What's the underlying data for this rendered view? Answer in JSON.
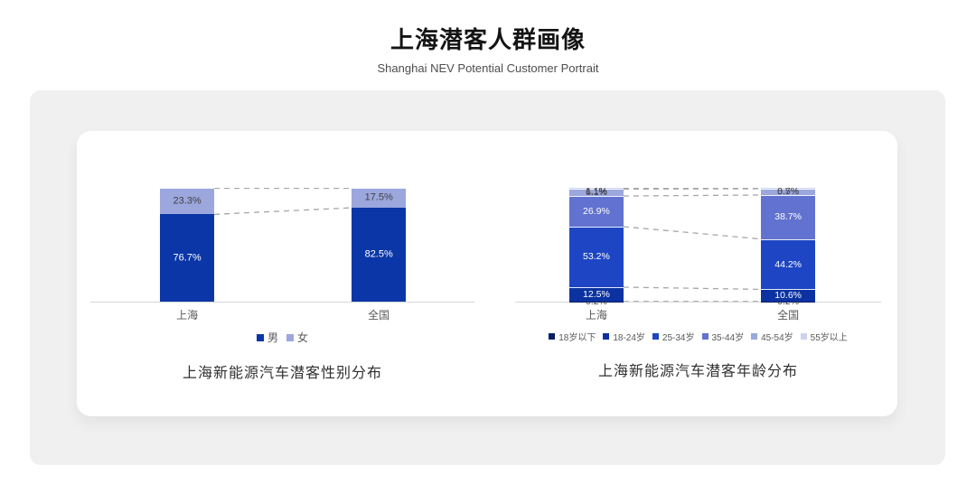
{
  "header": {
    "title": "上海潜客人群画像",
    "subtitle": "Shanghai NEV Potential Customer Portrait"
  },
  "colors": {
    "panel_background": "#f0f0f0",
    "card_background": "#ffffff",
    "axis_line": "#d6d6d6",
    "connector_dash": "#a6a6a6",
    "category_label": "#595959"
  },
  "chart_data": [
    {
      "type": "bar",
      "stacked": true,
      "categories": [
        "上海",
        "全国"
      ],
      "series": [
        {
          "name": "男",
          "color": "#0b36a7",
          "label_color": "#ffffff",
          "values": [
            76.7,
            82.5
          ]
        },
        {
          "name": "女",
          "color": "#9ba7dd",
          "label_color": "#404040",
          "values": [
            23.3,
            17.5
          ]
        }
      ],
      "value_suffix": "%",
      "ylim": [
        0,
        100
      ],
      "grid": false,
      "legend_position": "bottom",
      "connectors": "dashed",
      "caption": "上海新能源汽车潜客性别分布"
    },
    {
      "type": "bar",
      "stacked": true,
      "categories": [
        "上海",
        "全国"
      ],
      "series": [
        {
          "name": "18岁以下",
          "color": "#071d66",
          "label_color": "#404040",
          "values": [
            0.2,
            0.2
          ]
        },
        {
          "name": "18-24岁",
          "color": "#0b32a0",
          "label_color": "#ffffff",
          "values": [
            12.5,
            10.6
          ]
        },
        {
          "name": "25-34岁",
          "color": "#1e46c4",
          "label_color": "#ffffff",
          "values": [
            53.2,
            44.2
          ]
        },
        {
          "name": "35-44岁",
          "color": "#6272d0",
          "label_color": "#ffffff",
          "values": [
            26.9,
            38.7
          ]
        },
        {
          "name": "45-54岁",
          "color": "#9ba7dd",
          "label_color": "#404040",
          "values": [
            6.1,
            5.5
          ]
        },
        {
          "name": "55岁以上",
          "color": "#cdd3ee",
          "label_color": "#404040",
          "values": [
            1.1,
            0.7
          ]
        }
      ],
      "value_suffix": "%",
      "ylim": [
        0,
        100
      ],
      "grid": false,
      "legend_position": "bottom",
      "connectors": "dashed",
      "caption": "上海新能源汽车潜客年龄分布"
    }
  ]
}
